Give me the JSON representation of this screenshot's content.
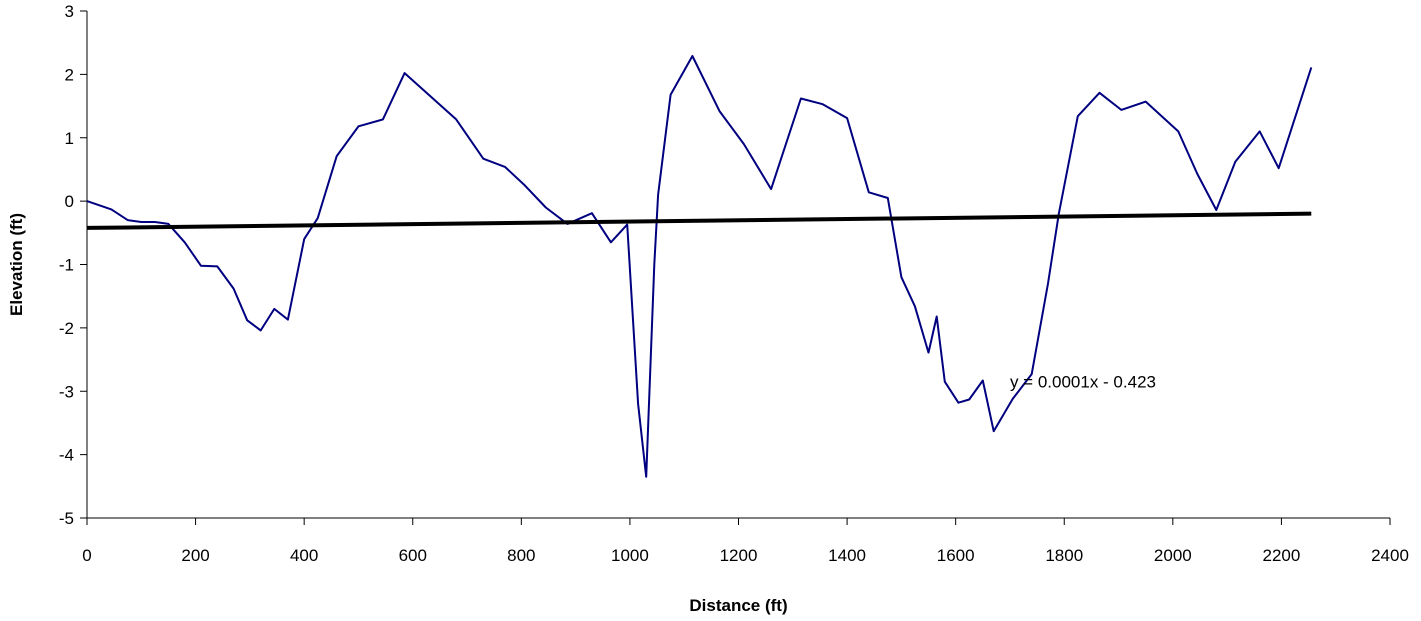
{
  "chart_data": {
    "type": "line",
    "title": "",
    "xlabel": "Distance (ft)",
    "ylabel": "Elevation (ft)",
    "xlim": [
      0,
      2400
    ],
    "ylim": [
      -5,
      3
    ],
    "x_ticks": [
      0,
      200,
      400,
      600,
      800,
      1000,
      1200,
      1400,
      1600,
      1800,
      2000,
      2200,
      2400
    ],
    "y_ticks": [
      3,
      2,
      1,
      0,
      -1,
      -2,
      -3,
      -4,
      -5
    ],
    "grid": false,
    "legend": "none",
    "series": [
      {
        "color": "#000080",
        "points": [
          [
            0,
            0.0
          ],
          [
            45,
            -0.13
          ],
          [
            75,
            -0.3
          ],
          [
            100,
            -0.33
          ],
          [
            125,
            -0.33
          ],
          [
            150,
            -0.36
          ],
          [
            180,
            -0.65
          ],
          [
            210,
            -1.02
          ],
          [
            240,
            -1.03
          ],
          [
            270,
            -1.38
          ],
          [
            295,
            -1.88
          ],
          [
            320,
            -2.04
          ],
          [
            345,
            -1.7
          ],
          [
            370,
            -1.87
          ],
          [
            400,
            -0.6
          ],
          [
            425,
            -0.27
          ],
          [
            460,
            0.71
          ],
          [
            500,
            1.18
          ],
          [
            545,
            1.29
          ],
          [
            585,
            2.02
          ],
          [
            680,
            1.29
          ],
          [
            730,
            0.67
          ],
          [
            770,
            0.54
          ],
          [
            805,
            0.26
          ],
          [
            845,
            -0.1
          ],
          [
            885,
            -0.36
          ],
          [
            930,
            -0.19
          ],
          [
            965,
            -0.65
          ],
          [
            995,
            -0.37
          ],
          [
            1015,
            -3.2
          ],
          [
            1030,
            -4.35
          ],
          [
            1045,
            -1.0
          ],
          [
            1052,
            0.1
          ],
          [
            1075,
            1.68
          ],
          [
            1115,
            2.29
          ],
          [
            1165,
            1.42
          ],
          [
            1210,
            0.9
          ],
          [
            1260,
            0.19
          ],
          [
            1315,
            1.62
          ],
          [
            1355,
            1.53
          ],
          [
            1400,
            1.31
          ],
          [
            1440,
            0.14
          ],
          [
            1475,
            0.05
          ],
          [
            1500,
            -1.2
          ],
          [
            1525,
            -1.66
          ],
          [
            1550,
            -2.39
          ],
          [
            1565,
            -1.82
          ],
          [
            1580,
            -2.85
          ],
          [
            1605,
            -3.18
          ],
          [
            1625,
            -3.13
          ],
          [
            1650,
            -2.83
          ],
          [
            1670,
            -3.63
          ],
          [
            1705,
            -3.12
          ],
          [
            1740,
            -2.73
          ],
          [
            1770,
            -1.3
          ],
          [
            1790,
            -0.2
          ],
          [
            1825,
            1.34
          ],
          [
            1865,
            1.71
          ],
          [
            1905,
            1.44
          ],
          [
            1950,
            1.57
          ],
          [
            2010,
            1.1
          ],
          [
            2045,
            0.43
          ],
          [
            2080,
            -0.14
          ],
          [
            2115,
            0.62
          ],
          [
            2160,
            1.1
          ],
          [
            2195,
            0.52
          ],
          [
            2255,
            2.11
          ]
        ]
      }
    ],
    "trendline": {
      "color": "#000000",
      "x": [
        0,
        2255
      ],
      "slope": 0.0001,
      "intercept": -0.423,
      "equation_label": "y = 0.0001x - 0.423",
      "label_x": 1700,
      "label_y": -2.85
    }
  }
}
